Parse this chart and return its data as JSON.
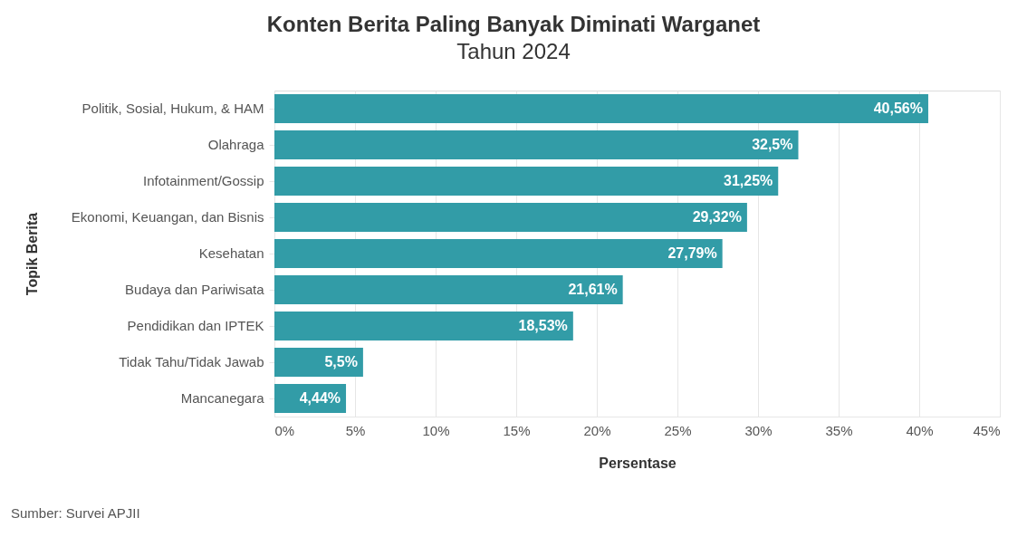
{
  "chart_data": {
    "type": "bar",
    "orientation": "horizontal",
    "title": "Konten Berita Paling Banyak Diminati Warganet",
    "subtitle": "Tahun 2024",
    "xlabel": "Persentase",
    "ylabel": "Topik Berita",
    "categories": [
      "Politik, Sosial, Hukum, & HAM",
      "Olahraga",
      "Infotainment/Gossip",
      "Ekonomi, Keuangan, dan Bisnis",
      "Kesehatan",
      "Budaya dan Pariwisata",
      "Pendidikan dan IPTEK",
      "Tidak Tahu/Tidak Jawab",
      "Mancanegara"
    ],
    "values": [
      40.56,
      32.5,
      31.25,
      29.32,
      27.79,
      21.61,
      18.53,
      5.5,
      4.44
    ],
    "value_labels": [
      "40,56%",
      "32,5%",
      "31,25%",
      "29,32%",
      "27,79%",
      "21,61%",
      "18,53%",
      "5,5%",
      "4,44%"
    ],
    "color": "#329ca7",
    "xlim": [
      0,
      45
    ],
    "xticks": [
      {
        "value": 0,
        "label": "0%"
      },
      {
        "value": 5,
        "label": "5%"
      },
      {
        "value": 10,
        "label": "10%"
      },
      {
        "value": 15,
        "label": "15%"
      },
      {
        "value": 20,
        "label": "20%"
      },
      {
        "value": 25,
        "label": "25%"
      },
      {
        "value": 30,
        "label": "30%"
      },
      {
        "value": 35,
        "label": "35%"
      },
      {
        "value": 40,
        "label": "40%"
      },
      {
        "value": 45,
        "label": "45%"
      }
    ],
    "grid": "x",
    "annotations": [
      "Sumber: Survei APJII"
    ]
  }
}
